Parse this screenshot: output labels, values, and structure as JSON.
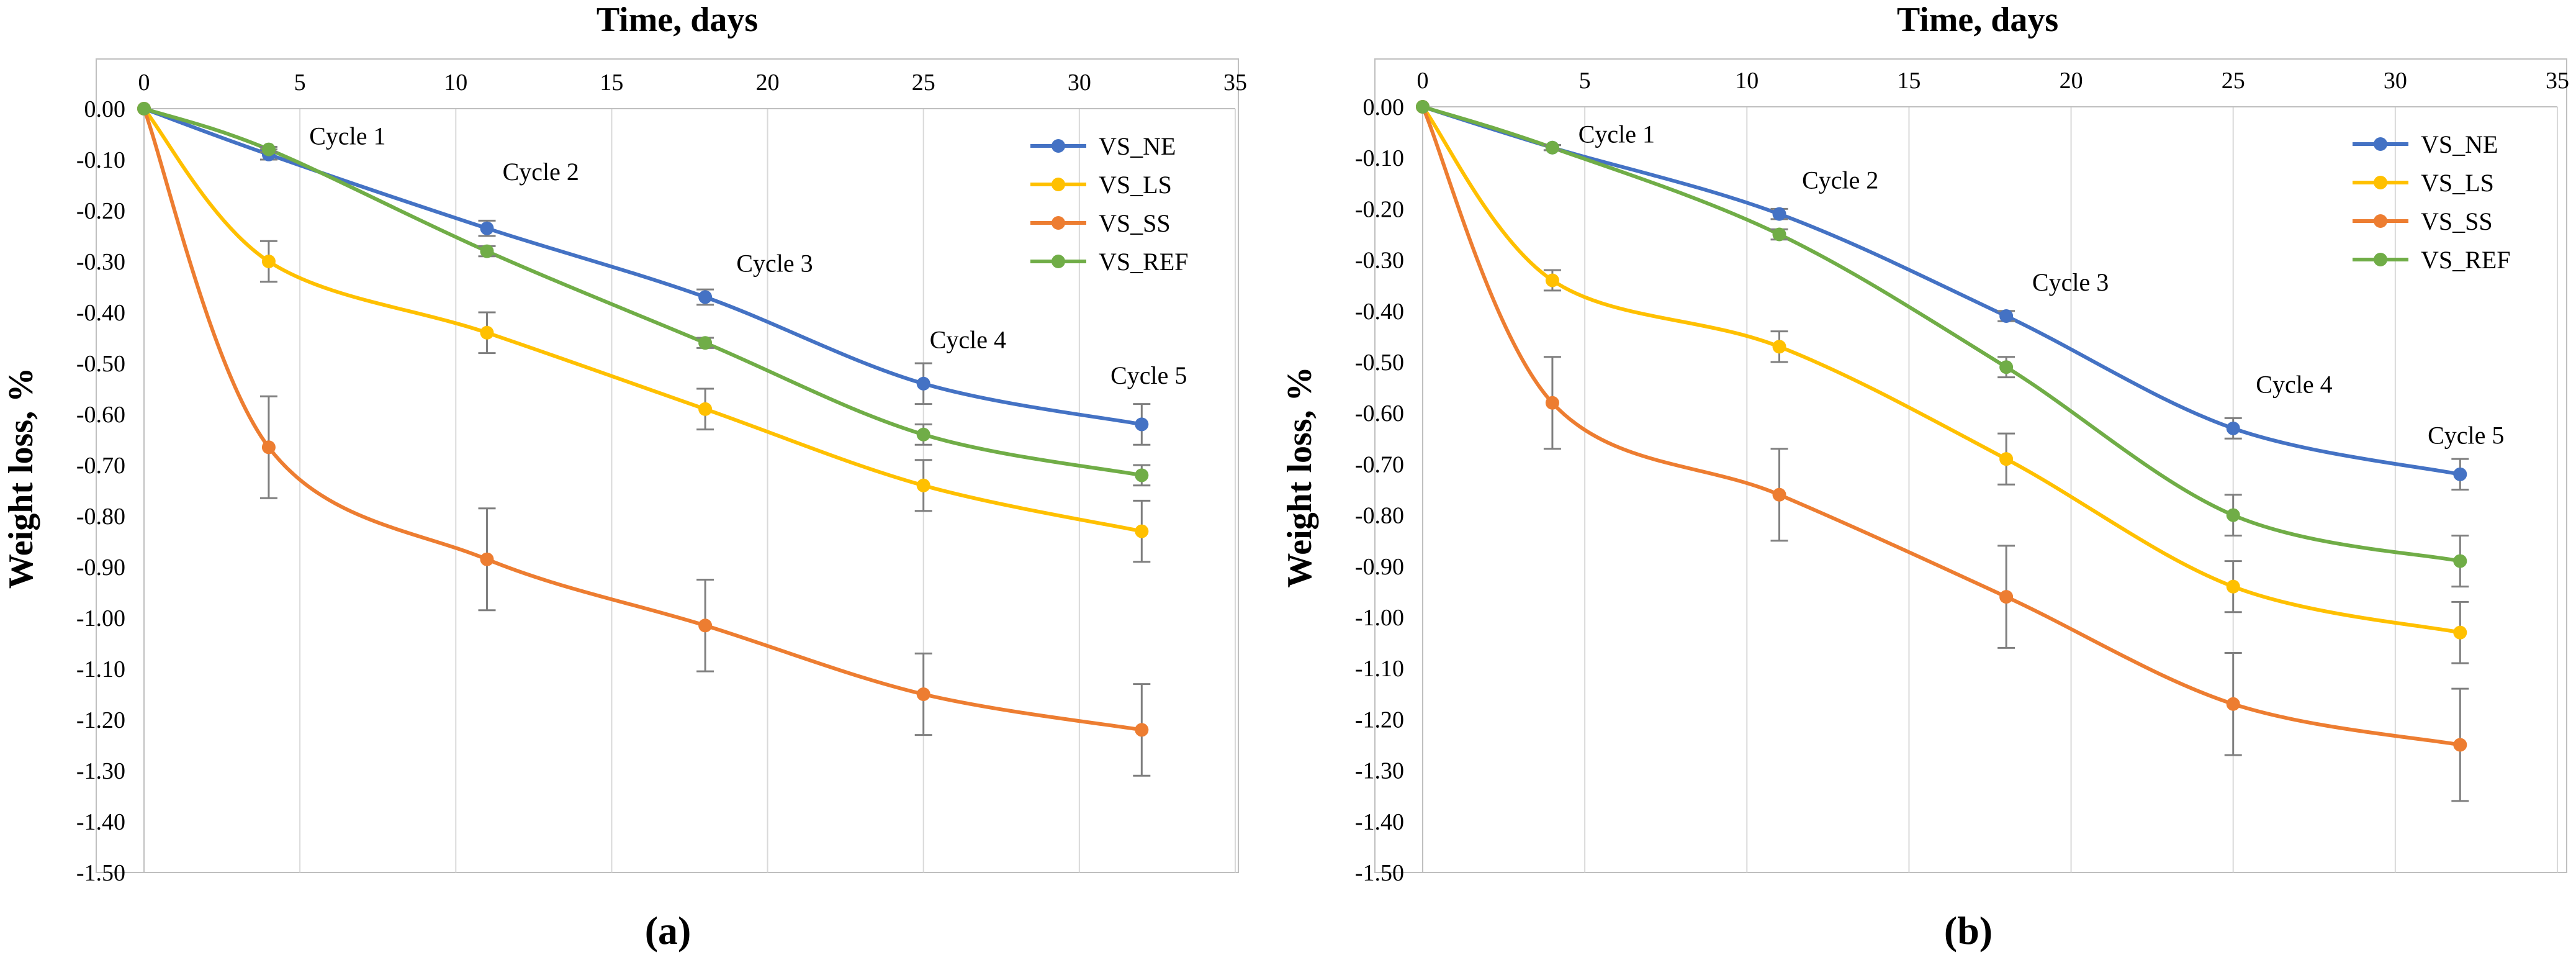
{
  "chart_data": [
    {
      "type": "line",
      "panel_label": "(a)",
      "xlabel": "Time, days",
      "ylabel": "Weight loss, %",
      "x_axis_position": "top",
      "xlim": [
        0,
        35
      ],
      "x_ticks": [
        0,
        5,
        10,
        15,
        20,
        25,
        30,
        35
      ],
      "ylim": [
        -1.5,
        0
      ],
      "y_ticks": [
        "0.00",
        "-0.10",
        "-0.20",
        "-0.30",
        "-0.40",
        "-0.50",
        "-0.60",
        "-0.70",
        "-0.80",
        "-0.90",
        "-1.00",
        "-1.10",
        "-1.20",
        "-1.30",
        "-1.40",
        "-1.50"
      ],
      "grid": "vertical",
      "legend_position": "top-right",
      "x": [
        0,
        4,
        11,
        18,
        25,
        32
      ],
      "series": [
        {
          "name": "VS_NE",
          "color": "#4472C4",
          "values": [
            0,
            -0.09,
            -0.235,
            -0.37,
            -0.54,
            -0.62
          ],
          "error": [
            0,
            0.01,
            0.015,
            0.015,
            0.04,
            0.04
          ]
        },
        {
          "name": "VS_LS",
          "color": "#FFC000",
          "values": [
            0,
            -0.3,
            -0.44,
            -0.59,
            -0.74,
            -0.83
          ],
          "error": [
            0,
            0.04,
            0.04,
            0.04,
            0.05,
            0.06
          ]
        },
        {
          "name": "VS_SS",
          "color": "#ED7D31",
          "values": [
            0,
            -0.665,
            -0.885,
            -1.015,
            -1.15,
            -1.22
          ],
          "error": [
            0,
            0.1,
            0.1,
            0.09,
            0.08,
            0.09
          ]
        },
        {
          "name": "VS_REF",
          "color": "#70AD47",
          "values": [
            0,
            -0.08,
            -0.28,
            -0.46,
            -0.64,
            -0.72
          ],
          "error": [
            0,
            0.005,
            0.01,
            0.01,
            0.02,
            0.02
          ]
        }
      ],
      "annotations": [
        {
          "text": "Cycle 1",
          "x": 5.3,
          "y": -0.07
        },
        {
          "text": "Cycle 2",
          "x": 11.5,
          "y": -0.14
        },
        {
          "text": "Cycle 3",
          "x": 19.0,
          "y": -0.32
        },
        {
          "text": "Cycle 4",
          "x": 25.2,
          "y": -0.47
        },
        {
          "text": "Cycle 5",
          "x": 31.0,
          "y": -0.54
        }
      ]
    },
    {
      "type": "line",
      "panel_label": "(b)",
      "xlabel": "Time, days",
      "ylabel": "Weight loss, %",
      "x_axis_position": "top",
      "xlim": [
        0,
        35
      ],
      "x_ticks": [
        0,
        5,
        10,
        15,
        20,
        25,
        30,
        35
      ],
      "ylim": [
        -1.5,
        0
      ],
      "y_ticks": [
        "0.00",
        "-0.10",
        "-0.20",
        "-0.30",
        "-0.40",
        "-0.50",
        "-0.60",
        "-0.70",
        "-0.80",
        "-0.90",
        "-1.00",
        "-1.10",
        "-1.20",
        "-1.30",
        "-1.40",
        "-1.50"
      ],
      "grid": "vertical",
      "legend_position": "top-right",
      "x": [
        0,
        4,
        11,
        18,
        25,
        32
      ],
      "series": [
        {
          "name": "VS_NE",
          "color": "#4472C4",
          "values": [
            0,
            -0.08,
            -0.21,
            -0.41,
            -0.63,
            -0.72
          ],
          "error": [
            0,
            0.005,
            0.01,
            0.01,
            0.02,
            0.03
          ]
        },
        {
          "name": "VS_LS",
          "color": "#FFC000",
          "values": [
            0,
            -0.34,
            -0.47,
            -0.69,
            -0.94,
            -1.03
          ],
          "error": [
            0,
            0.02,
            0.03,
            0.05,
            0.05,
            0.06
          ]
        },
        {
          "name": "VS_SS",
          "color": "#ED7D31",
          "values": [
            0,
            -0.58,
            -0.76,
            -0.96,
            -1.17,
            -1.25
          ],
          "error": [
            0,
            0.09,
            0.09,
            0.1,
            0.1,
            0.11
          ]
        },
        {
          "name": "VS_REF",
          "color": "#70AD47",
          "values": [
            0,
            -0.08,
            -0.25,
            -0.51,
            -0.8,
            -0.89
          ],
          "error": [
            0,
            0.005,
            0.01,
            0.02,
            0.04,
            0.05
          ]
        }
      ],
      "annotations": [
        {
          "text": "Cycle 1",
          "x": 4.8,
          "y": -0.07
        },
        {
          "text": "Cycle 2",
          "x": 11.7,
          "y": -0.16
        },
        {
          "text": "Cycle 3",
          "x": 18.8,
          "y": -0.36
        },
        {
          "text": "Cycle 4",
          "x": 25.7,
          "y": -0.56
        },
        {
          "text": "Cycle 5",
          "x": 31.0,
          "y": -0.66
        }
      ]
    }
  ]
}
